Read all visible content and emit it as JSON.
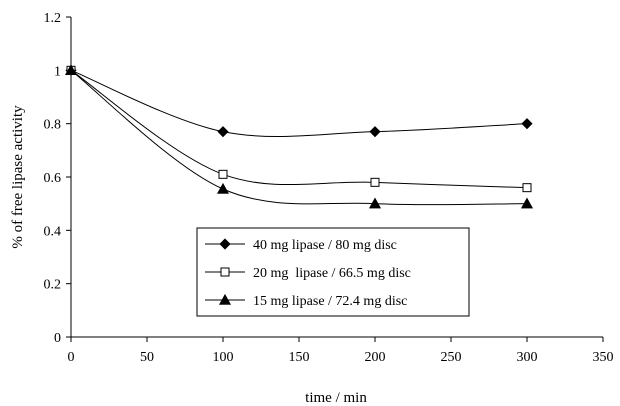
{
  "chart_data": {
    "type": "line",
    "title": "",
    "xlabel": "time / min",
    "ylabel": "% of free lipase activity",
    "xlim": [
      0,
      350
    ],
    "ylim": [
      0,
      1.2
    ],
    "xticks": [
      "0",
      "50",
      "100",
      "150",
      "200",
      "250",
      "300",
      "350"
    ],
    "yticks": [
      "0",
      "0.2",
      "0.4",
      "0.6",
      "0.8",
      "1",
      "1.2"
    ],
    "grid": false,
    "smooth": true,
    "legend_position": "bottom-center",
    "series": [
      {
        "name": "40 mg lipase / 80 mg disc",
        "marker": "diamond",
        "color": "#000000",
        "x": [
          0,
          100,
          200,
          300
        ],
        "y": [
          1.0,
          0.77,
          0.77,
          0.8
        ]
      },
      {
        "name": "20 mg  lipase / 66.5 mg disc",
        "marker": "open-square",
        "color": "#000000",
        "x": [
          0,
          100,
          200,
          300
        ],
        "y": [
          1.0,
          0.61,
          0.58,
          0.56
        ]
      },
      {
        "name": "15 mg lipase / 72.4 mg disc",
        "marker": "triangle",
        "color": "#000000",
        "x": [
          0,
          100,
          200,
          300
        ],
        "y": [
          1.0,
          0.555,
          0.5,
          0.5
        ]
      }
    ]
  }
}
